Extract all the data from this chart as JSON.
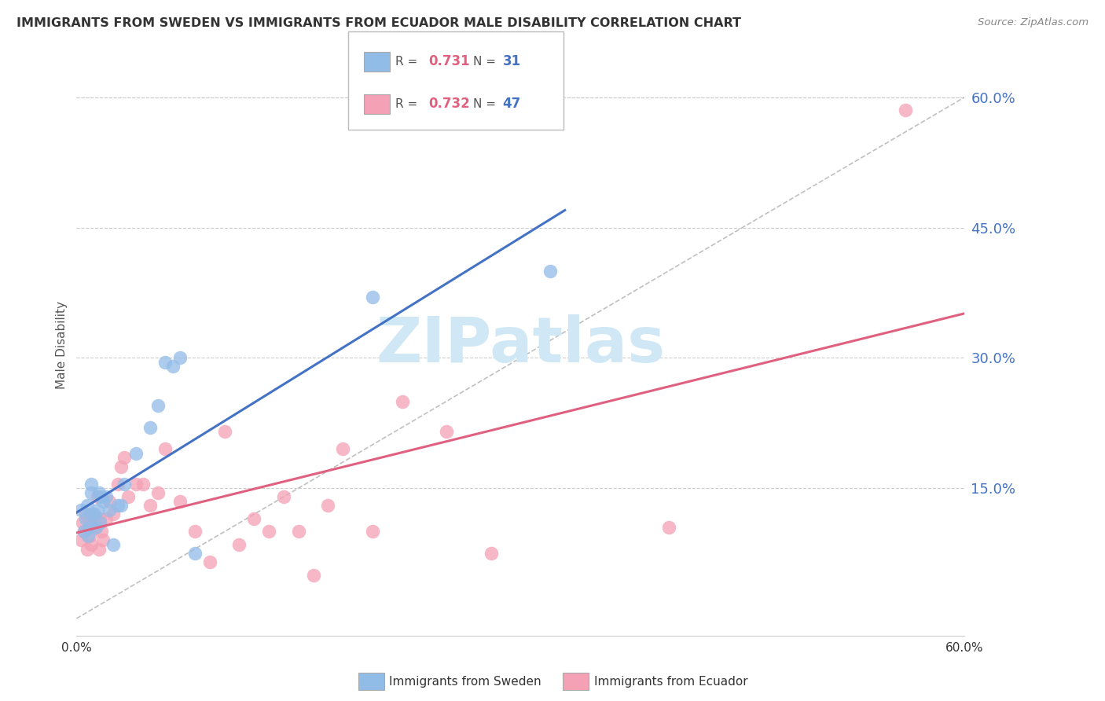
{
  "title": "IMMIGRANTS FROM SWEDEN VS IMMIGRANTS FROM ECUADOR MALE DISABILITY CORRELATION CHART",
  "source": "Source: ZipAtlas.com",
  "ylabel": "Male Disability",
  "xlim": [
    0.0,
    0.6
  ],
  "ylim": [
    -0.02,
    0.65
  ],
  "y_ticks_right": [
    0.15,
    0.3,
    0.45,
    0.6
  ],
  "y_tick_labels_right": [
    "15.0%",
    "30.0%",
    "45.0%",
    "60.0%"
  ],
  "grid_color": "#cccccc",
  "background_color": "#ffffff",
  "sweden_color": "#92bce8",
  "ecuador_color": "#f4a0b5",
  "sweden_line_color": "#4472c4",
  "ecuador_line_color": "#e06080",
  "diagonal_color": "#c0c0c0",
  "sweden_scatter_x": [
    0.003,
    0.005,
    0.006,
    0.007,
    0.008,
    0.009,
    0.01,
    0.01,
    0.01,
    0.012,
    0.013,
    0.014,
    0.015,
    0.016,
    0.017,
    0.018,
    0.02,
    0.022,
    0.025,
    0.028,
    0.03,
    0.032,
    0.04,
    0.05,
    0.055,
    0.06,
    0.065,
    0.07,
    0.08,
    0.2,
    0.32
  ],
  "sweden_scatter_y": [
    0.125,
    0.1,
    0.115,
    0.13,
    0.095,
    0.105,
    0.12,
    0.145,
    0.155,
    0.12,
    0.105,
    0.125,
    0.145,
    0.11,
    0.14,
    0.135,
    0.14,
    0.125,
    0.085,
    0.13,
    0.13,
    0.155,
    0.19,
    0.22,
    0.245,
    0.295,
    0.29,
    0.3,
    0.075,
    0.37,
    0.4
  ],
  "ecuador_scatter_x": [
    0.003,
    0.004,
    0.005,
    0.006,
    0.007,
    0.008,
    0.009,
    0.01,
    0.01,
    0.011,
    0.012,
    0.013,
    0.014,
    0.015,
    0.016,
    0.017,
    0.018,
    0.02,
    0.022,
    0.025,
    0.028,
    0.03,
    0.032,
    0.035,
    0.04,
    0.045,
    0.05,
    0.055,
    0.06,
    0.07,
    0.08,
    0.09,
    0.1,
    0.11,
    0.12,
    0.13,
    0.14,
    0.15,
    0.16,
    0.17,
    0.18,
    0.2,
    0.22,
    0.25,
    0.28,
    0.4,
    0.56
  ],
  "ecuador_scatter_y": [
    0.09,
    0.11,
    0.1,
    0.12,
    0.08,
    0.115,
    0.095,
    0.105,
    0.085,
    0.12,
    0.115,
    0.105,
    0.14,
    0.08,
    0.115,
    0.1,
    0.09,
    0.115,
    0.135,
    0.12,
    0.155,
    0.175,
    0.185,
    0.14,
    0.155,
    0.155,
    0.13,
    0.145,
    0.195,
    0.135,
    0.1,
    0.065,
    0.215,
    0.085,
    0.115,
    0.1,
    0.14,
    0.1,
    0.05,
    0.13,
    0.195,
    0.1,
    0.25,
    0.215,
    0.075,
    0.105,
    0.585
  ],
  "watermark_text": "ZIPatlas",
  "watermark_color": "#d0e8f5",
  "legend_frame_color": "#dddddd",
  "right_tick_color": "#4472c4",
  "bottom_tick_color": "#333333"
}
